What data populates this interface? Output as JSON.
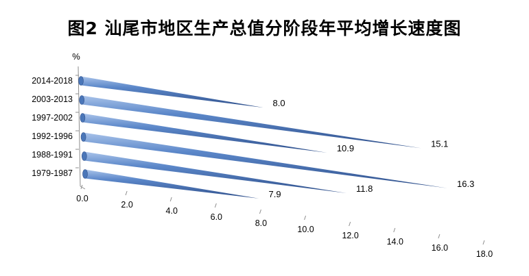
{
  "chart_data": {
    "type": "bar",
    "orientation": "horizontal",
    "style": "3d-cone",
    "title": "图2  汕尾市地区生产总值分阶段年平均增长速度图",
    "ylabel": "%",
    "categories": [
      "2014-2018",
      "2003-2013",
      "1997-2002",
      "1992-1996",
      "1988-1991",
      "1979-1987"
    ],
    "values": [
      8.0,
      15.1,
      10.9,
      16.3,
      11.8,
      7.9
    ],
    "value_labels": [
      "8.0",
      "15.1",
      "10.9",
      "16.3",
      "11.8",
      "7.9"
    ],
    "xlim": [
      0,
      18
    ],
    "x_ticks": [
      "0.0",
      "2.0",
      "4.0",
      "6.0",
      "8.0",
      "10.0",
      "12.0",
      "14.0",
      "16.0",
      "18.0"
    ],
    "grid": false,
    "legend": "none",
    "colors": {
      "bar_dark": "#3a5f9e",
      "bar_mid": "#5b87c9",
      "bar_light": "#a9c3ea",
      "axis": "#808080"
    }
  }
}
